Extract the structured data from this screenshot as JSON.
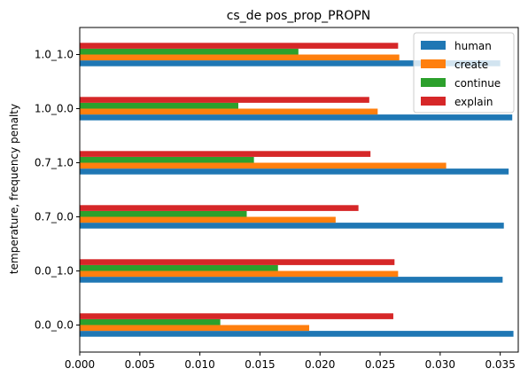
{
  "chart_data": {
    "type": "bar",
    "orientation": "horizontal",
    "title": "cs_de pos_prop_PROPN",
    "xlabel": "",
    "ylabel": "temperature, frequency penalty",
    "categories": [
      "0.0_0.0",
      "0.0_1.0",
      "0.7_0.0",
      "0.7_1.0",
      "1.0_0.0",
      "1.0_1.0"
    ],
    "xlim": [
      0,
      0.0365
    ],
    "xticks": [
      "0.000",
      "0.005",
      "0.010",
      "0.015",
      "0.020",
      "0.025",
      "0.030",
      "0.035"
    ],
    "xtick_values": [
      0,
      0.005,
      0.01,
      0.015,
      0.02,
      0.025,
      0.03,
      0.035
    ],
    "legend_position": "top-right",
    "grid": false,
    "series": [
      {
        "name": "human",
        "color": "#1f77b4",
        "values": [
          0.0361,
          0.0352,
          0.0353,
          0.0357,
          0.036,
          0.035
        ]
      },
      {
        "name": "create",
        "color": "#ff7f0e",
        "values": [
          0.0191,
          0.0265,
          0.0213,
          0.0305,
          0.0248,
          0.0266
        ]
      },
      {
        "name": "continue",
        "color": "#2ca02c",
        "values": [
          0.0117,
          0.0165,
          0.0139,
          0.0145,
          0.0132,
          0.0182
        ]
      },
      {
        "name": "explain",
        "color": "#d62728",
        "values": [
          0.0261,
          0.0262,
          0.0232,
          0.0242,
          0.0241,
          0.0265
        ]
      }
    ]
  }
}
